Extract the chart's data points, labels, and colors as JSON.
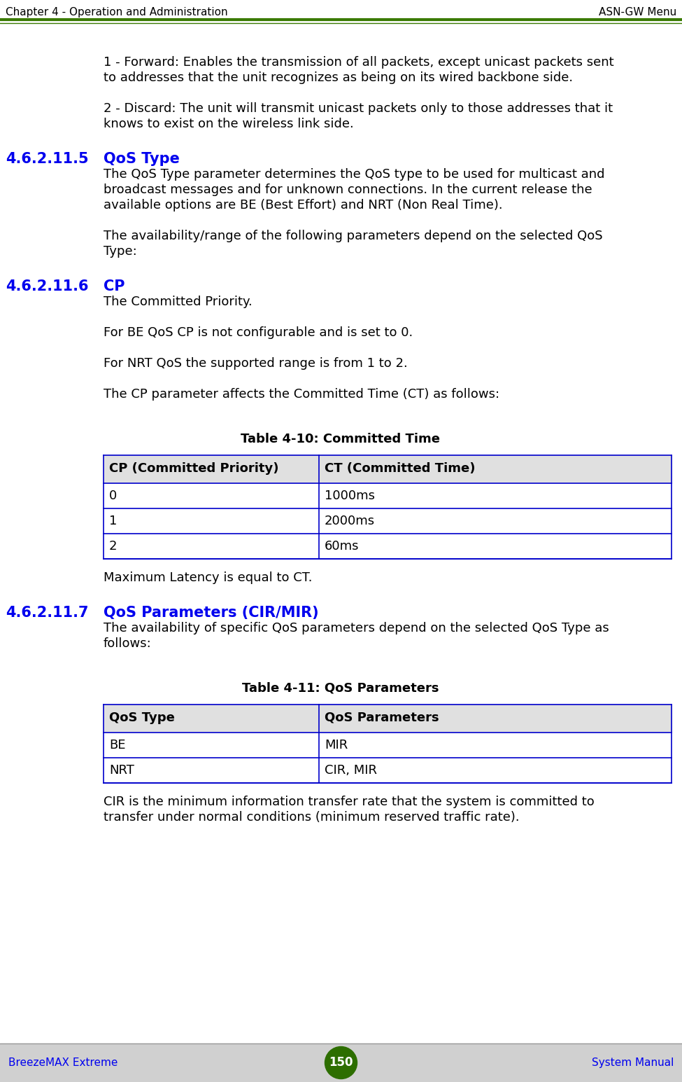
{
  "header_left": "Chapter 4 - Operation and Administration",
  "header_right": "ASN-GW Menu",
  "header_line_color1": "#3a7a00",
  "header_line_color2": "#3a7a00",
  "footer_left": "BreezeMAX Extreme",
  "footer_right": "System Manual",
  "footer_page": "150",
  "footer_bg": "#d0d0d0",
  "footer_text_color": "#0000ee",
  "footer_circle_color": "#2d6e00",
  "body_text_color": "#000000",
  "heading_color": "#0000ee",
  "bg_color": "#ffffff",
  "section_number_color": "#0000ee",
  "para1_line1": "1 - Forward: Enables the transmission of all packets, except unicast packets sent",
  "para1_line2": "to addresses that the unit recognizes as being on its wired backbone side.",
  "para2_line1": "2 - Discard: The unit will transmit unicast packets only to those addresses that it",
  "para2_line2": "knows to exist on the wireless link side.",
  "sec1_num": "4.6.2.11.5",
  "sec1_title": "QoS Type",
  "sec1_para1_line1": "The QoS Type parameter determines the QoS type to be used for multicast and",
  "sec1_para1_line2": "broadcast messages and for unknown connections. In the current release the",
  "sec1_para1_line3": "available options are BE (Best Effort) and NRT (Non Real Time).",
  "sec1_para2_line1": "The availability/range of the following parameters depend on the selected QoS",
  "sec1_para2_line2": "Type:",
  "sec2_num": "4.6.2.11.6",
  "sec2_title": "CP",
  "sec2_para1": "The Committed Priority.",
  "sec2_para2": "For BE QoS CP is not configurable and is set to 0.",
  "sec2_para3": "For NRT QoS the supported range is from 1 to 2.",
  "sec2_para4": "The CP parameter affects the Committed Time (CT) as follows:",
  "table1_title": "Table 4-10: Committed Time",
  "table1_header": [
    "CP (Committed Priority)",
    "CT (Committed Time)"
  ],
  "table1_rows": [
    [
      "0",
      "1000ms"
    ],
    [
      "1",
      "2000ms"
    ],
    [
      "2",
      "60ms"
    ]
  ],
  "table1_header_bg": "#e0e0e0",
  "table1_border_color": "#0000cc",
  "after_table1": "Maximum Latency is equal to CT.",
  "sec3_num": "4.6.2.11.7",
  "sec3_title": "QoS Parameters (CIR/MIR)",
  "sec3_para1_line1": "The availability of specific QoS parameters depend on the selected QoS Type as",
  "sec3_para1_line2": "follows:",
  "table2_title": "Table 4-11: QoS Parameters",
  "table2_header": [
    "QoS Type",
    "QoS Parameters"
  ],
  "table2_rows": [
    [
      "BE",
      "MIR"
    ],
    [
      "NRT",
      "CIR, MIR"
    ]
  ],
  "table2_header_bg": "#e0e0e0",
  "table2_border_color": "#0000cc",
  "after_table2_line1": "CIR is the minimum information transfer rate that the system is committed to",
  "after_table2_line2": "transfer under normal conditions (minimum reserved traffic rate).",
  "font_size_body": 13,
  "font_size_heading": 15,
  "font_size_header_footer": 11
}
